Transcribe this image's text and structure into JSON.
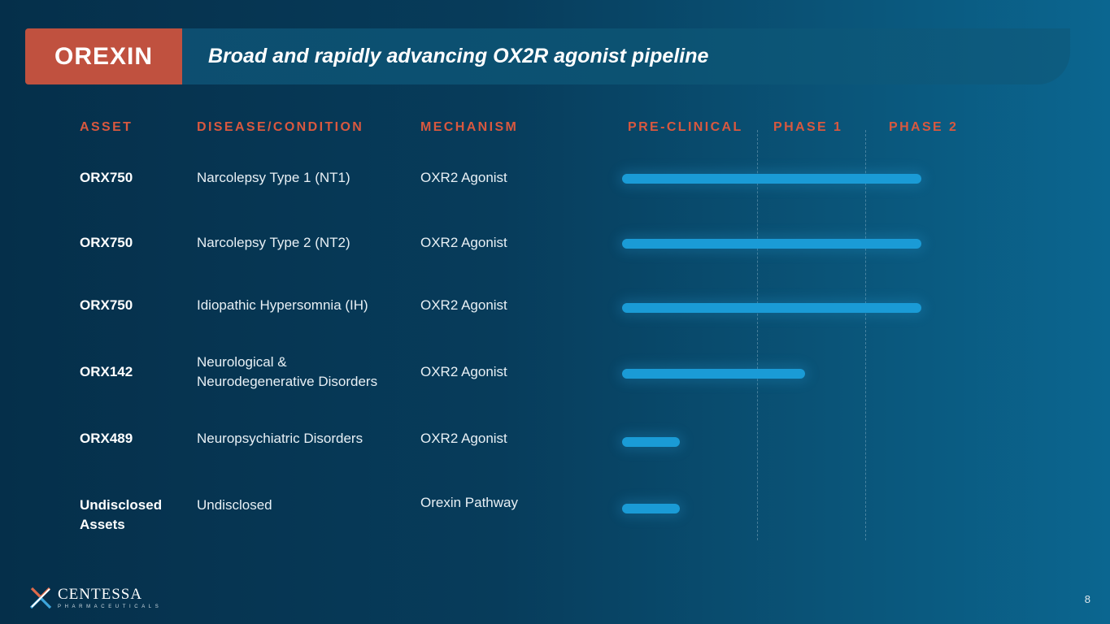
{
  "banner": {
    "tag": "OREXIN",
    "title": "Broad and rapidly advancing OX2R agonist pipeline",
    "tag_color": "#c0513f"
  },
  "columns": {
    "asset": "ASSET",
    "disease": "DISEASE/CONDITION",
    "mechanism": "MECHANISM",
    "preclinical": "PRE-CLINICAL",
    "phase1": "PHASE 1",
    "phase2": "PHASE 2",
    "header_color": "#d9583f"
  },
  "rows": [
    {
      "asset": "ORX750",
      "disease": "Narcolepsy Type 1 (NT1)",
      "mechanism": "OXR2 Agonist",
      "progress": "Phase 2"
    },
    {
      "asset": "ORX750",
      "disease": "Narcolepsy Type 2 (NT2)",
      "mechanism": "OXR2 Agonist",
      "progress": "Phase 2"
    },
    {
      "asset": "ORX750",
      "disease": "Idiopathic Hypersomnia (IH)",
      "mechanism": "OXR2 Agonist",
      "progress": "Phase 2"
    },
    {
      "asset": "ORX142",
      "disease_line1": "Neurological &",
      "disease_line2": "Neurodegenerative Disorders",
      "mechanism": "OXR2 Agonist",
      "progress": "Phase 1"
    },
    {
      "asset": "ORX489",
      "disease": "Neuropsychiatric Disorders",
      "mechanism": "OXR2 Agonist",
      "progress": "Pre-clinical"
    },
    {
      "asset_line1": "Undisclosed",
      "asset_line2": "Assets",
      "disease": "Undisclosed",
      "mechanism": "Orexin Pathway",
      "progress": "Pre-clinical"
    }
  ],
  "bar_color": "#1a9bd6",
  "footer": {
    "logo_name": "CENTESSA",
    "logo_sub": "PHARMACEUTICALS",
    "page_number": "8"
  }
}
